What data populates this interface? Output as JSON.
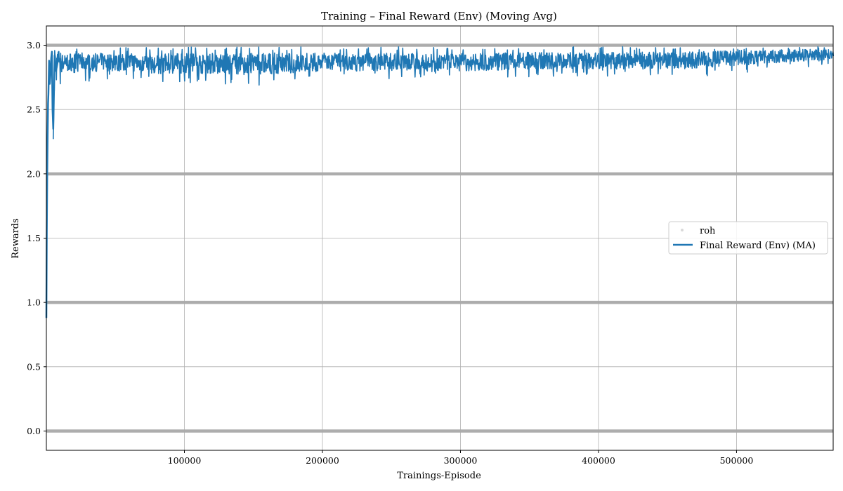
{
  "chart_data": {
    "type": "line",
    "title": "Training – Final Reward (Env) (Moving Avg)",
    "xlabel": "Trainings-Episode",
    "ylabel": "Rewards",
    "xlim": [
      0,
      570000
    ],
    "ylim": [
      -0.15,
      3.15
    ],
    "xticks": [
      100000,
      200000,
      300000,
      400000,
      500000
    ],
    "xtick_labels": [
      "100000",
      "200000",
      "300000",
      "400000",
      "500000"
    ],
    "yticks": [
      0.0,
      0.5,
      1.0,
      1.5,
      2.0,
      2.5,
      3.0
    ],
    "ytick_labels": [
      "0.0",
      "0.5",
      "1.0",
      "1.5",
      "2.0",
      "2.5",
      "3.0"
    ],
    "grid": true,
    "legend_position": "center-right",
    "series": [
      {
        "name": "roh",
        "kind": "scatter",
        "color": "#aaaaaa",
        "levels": [
          0,
          1,
          2,
          3
        ]
      },
      {
        "name": "Final Reward (Env) (MA)",
        "kind": "line",
        "color": "#1f77b4",
        "x": [
          0,
          300,
          600,
          900,
          1200,
          1500,
          2000,
          2500,
          3000,
          3500,
          4000,
          4500,
          5000,
          6000,
          7000,
          8000,
          9000,
          10000,
          12000,
          14000,
          16000,
          18000,
          20000,
          25000,
          30000,
          40000,
          50000,
          60000,
          70000,
          80000,
          90000,
          100000,
          120000,
          140000,
          160000,
          180000,
          200000,
          220000,
          240000,
          260000,
          280000,
          300000,
          320000,
          340000,
          360000,
          380000,
          400000,
          420000,
          440000,
          460000,
          480000,
          500000,
          520000,
          540000,
          560000,
          570000
        ],
        "y": [
          0.88,
          1.55,
          2.0,
          2.3,
          2.55,
          2.62,
          2.88,
          2.7,
          2.78,
          2.9,
          2.95,
          2.5,
          2.35,
          2.92,
          2.8,
          2.86,
          2.9,
          2.88,
          2.85,
          2.87,
          2.86,
          2.88,
          2.86,
          2.87,
          2.86,
          2.87,
          2.86,
          2.87,
          2.86,
          2.85,
          2.86,
          2.86,
          2.86,
          2.85,
          2.86,
          2.86,
          2.87,
          2.87,
          2.87,
          2.87,
          2.86,
          2.87,
          2.87,
          2.88,
          2.88,
          2.88,
          2.88,
          2.88,
          2.88,
          2.88,
          2.89,
          2.9,
          2.91,
          2.92,
          2.92,
          2.93
        ],
        "band": {
          "x": [
            5000,
            50000,
            100000,
            150000,
            200000,
            250000,
            300000,
            350000,
            400000,
            450000,
            500000,
            550000,
            570000
          ],
          "low": [
            2.68,
            2.74,
            2.7,
            2.68,
            2.73,
            2.74,
            2.74,
            2.75,
            2.76,
            2.74,
            2.78,
            2.82,
            2.84
          ],
          "high": [
            2.97,
            2.98,
            2.99,
            2.99,
            2.99,
            2.99,
            2.99,
            2.99,
            2.99,
            2.99,
            2.99,
            2.99,
            2.99
          ]
        }
      }
    ]
  }
}
